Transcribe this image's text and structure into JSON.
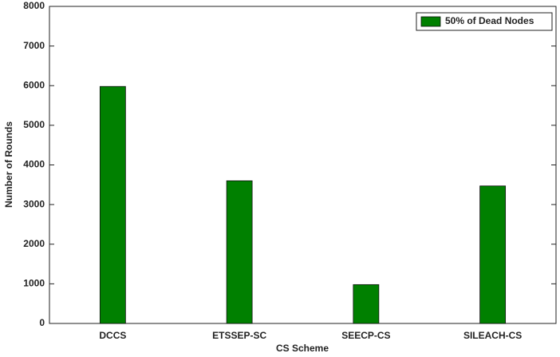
{
  "chart_data": {
    "type": "bar",
    "x_label": "CS Scheme",
    "y_label": "Number of Rounds",
    "categories": [
      "DCCS",
      "ETSSEP-SC",
      "SEECP-CS",
      "SILEACH-CS"
    ],
    "series": [
      {
        "name": "50% of Dead Nodes",
        "color": "#008000",
        "values": [
          5980,
          3600,
          980,
          3470
        ]
      }
    ],
    "ylim": [
      0,
      8000
    ],
    "yticks": [
      0,
      1000,
      2000,
      3000,
      4000,
      5000,
      6000,
      7000,
      8000
    ],
    "grid": false,
    "legend": "upper right"
  }
}
